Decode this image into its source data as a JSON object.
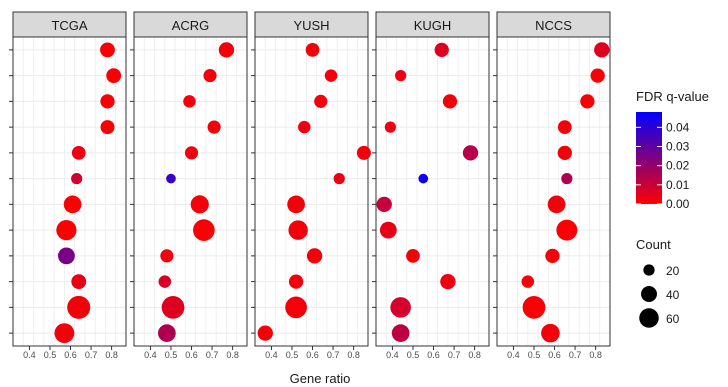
{
  "chart_data": {
    "type": "scatter",
    "xlabel": "Gene ratio",
    "ylabel": "",
    "xlim": [
      0.32,
      0.87
    ],
    "x_ticks": [
      "0.4",
      "0.5",
      "0.6",
      "0.7",
      "0.8"
    ],
    "x_tick_values": [
      0.4,
      0.5,
      0.6,
      0.7,
      0.8
    ],
    "n_rows": 12,
    "grid": true,
    "panel_background": "#ffffff",
    "grid_color": "#ebebeb",
    "strip_fill": "#d9d9d9",
    "color_scale": {
      "title": "FDR q-value",
      "low_color": "#ff0000",
      "high_color": "#0000ff",
      "min": 0,
      "max": 0.048,
      "tick_labels": [
        "0.04",
        "0.03",
        "0.02",
        "0.01",
        "0.00"
      ],
      "tick_values": [
        0.04,
        0.03,
        0.02,
        0.01,
        0.0
      ]
    },
    "size_legend": {
      "title": "Count",
      "labels": [
        "20",
        "40",
        "60"
      ],
      "values": [
        20,
        40,
        60
      ]
    },
    "legend_position": "right",
    "panels": [
      {
        "name": "TCGA",
        "points": [
          {
            "row": 1,
            "x": 0.78,
            "count": 28,
            "q": 0.001
          },
          {
            "row": 2,
            "x": 0.81,
            "count": 28,
            "q": 0.001
          },
          {
            "row": 3,
            "x": 0.78,
            "count": 26,
            "q": 0.001
          },
          {
            "row": 4,
            "x": 0.78,
            "count": 25,
            "q": 0.001
          },
          {
            "row": 5,
            "x": 0.64,
            "count": 24,
            "q": 0.003
          },
          {
            "row": 6,
            "x": 0.63,
            "count": 16,
            "q": 0.009
          },
          {
            "row": 7,
            "x": 0.61,
            "count": 40,
            "q": 0.001
          },
          {
            "row": 8,
            "x": 0.58,
            "count": 52,
            "q": 0.001
          },
          {
            "row": 9,
            "x": 0.58,
            "count": 36,
            "q": 0.025
          },
          {
            "row": 10,
            "x": 0.64,
            "count": 28,
            "q": 0.004
          },
          {
            "row": 11,
            "x": 0.64,
            "count": 68,
            "q": 0.002
          },
          {
            "row": 12,
            "x": 0.57,
            "count": 50,
            "q": 0.002
          }
        ]
      },
      {
        "name": "ACRG",
        "points": [
          {
            "row": 1,
            "x": 0.77,
            "count": 30,
            "q": 0.002
          },
          {
            "row": 2,
            "x": 0.69,
            "count": 22,
            "q": 0.002
          },
          {
            "row": 3,
            "x": 0.59,
            "count": 20,
            "q": 0.002
          },
          {
            "row": 4,
            "x": 0.71,
            "count": 22,
            "q": 0.002
          },
          {
            "row": 5,
            "x": 0.6,
            "count": 22,
            "q": 0.003
          },
          {
            "row": 6,
            "x": 0.5,
            "count": 12,
            "q": 0.037
          },
          {
            "row": 7,
            "x": 0.64,
            "count": 42,
            "q": 0.002
          },
          {
            "row": 8,
            "x": 0.66,
            "count": 60,
            "q": 0.001
          },
          {
            "row": 9,
            "x": 0.48,
            "count": 22,
            "q": 0.002
          },
          {
            "row": 10,
            "x": 0.47,
            "count": 20,
            "q": 0.007
          },
          {
            "row": 11,
            "x": 0.51,
            "count": 66,
            "q": 0.006
          },
          {
            "row": 12,
            "x": 0.48,
            "count": 40,
            "q": 0.015
          }
        ]
      },
      {
        "name": "YUSH",
        "points": [
          {
            "row": 1,
            "x": 0.6,
            "count": 24,
            "q": 0.002
          },
          {
            "row": 2,
            "x": 0.69,
            "count": 20,
            "q": 0.002
          },
          {
            "row": 3,
            "x": 0.64,
            "count": 22,
            "q": 0.002
          },
          {
            "row": 4,
            "x": 0.56,
            "count": 20,
            "q": 0.003
          },
          {
            "row": 5,
            "x": 0.85,
            "count": 25,
            "q": 0.002
          },
          {
            "row": 6,
            "x": 0.73,
            "count": 16,
            "q": 0.004
          },
          {
            "row": 7,
            "x": 0.52,
            "count": 40,
            "q": 0.002
          },
          {
            "row": 8,
            "x": 0.53,
            "count": 48,
            "q": 0.002
          },
          {
            "row": 9,
            "x": 0.61,
            "count": 30,
            "q": 0.002
          },
          {
            "row": 10,
            "x": 0.52,
            "count": 26,
            "q": 0.002
          },
          {
            "row": 11,
            "x": 0.52,
            "count": 60,
            "q": 0.002
          },
          {
            "row": 12,
            "x": 0.37,
            "count": 30,
            "q": 0.002
          }
        ]
      },
      {
        "name": "KUGH",
        "points": [
          {
            "row": 1,
            "x": 0.64,
            "count": 26,
            "q": 0.006
          },
          {
            "row": 2,
            "x": 0.44,
            "count": 16,
            "q": 0.003
          },
          {
            "row": 3,
            "x": 0.68,
            "count": 26,
            "q": 0.002
          },
          {
            "row": 4,
            "x": 0.39,
            "count": 16,
            "q": 0.003
          },
          {
            "row": 5,
            "x": 0.78,
            "count": 30,
            "q": 0.014
          },
          {
            "row": 6,
            "x": 0.55,
            "count": 12,
            "q": 0.045
          },
          {
            "row": 7,
            "x": 0.36,
            "count": 30,
            "q": 0.011
          },
          {
            "row": 8,
            "x": 0.38,
            "count": 36,
            "q": 0.004
          },
          {
            "row": 9,
            "x": 0.5,
            "count": 24,
            "q": 0.002
          },
          {
            "row": 10,
            "x": 0.67,
            "count": 30,
            "q": 0.003
          },
          {
            "row": 11,
            "x": 0.44,
            "count": 54,
            "q": 0.008
          },
          {
            "row": 12,
            "x": 0.44,
            "count": 40,
            "q": 0.012
          }
        ]
      },
      {
        "name": "NCCS",
        "points": [
          {
            "row": 1,
            "x": 0.83,
            "count": 30,
            "q": 0.006
          },
          {
            "row": 2,
            "x": 0.81,
            "count": 26,
            "q": 0.001
          },
          {
            "row": 3,
            "x": 0.76,
            "count": 26,
            "q": 0.001
          },
          {
            "row": 4,
            "x": 0.65,
            "count": 24,
            "q": 0.002
          },
          {
            "row": 5,
            "x": 0.65,
            "count": 26,
            "q": 0.002
          },
          {
            "row": 6,
            "x": 0.66,
            "count": 16,
            "q": 0.015
          },
          {
            "row": 7,
            "x": 0.61,
            "count": 40,
            "q": 0.002
          },
          {
            "row": 8,
            "x": 0.66,
            "count": 56,
            "q": 0.001
          },
          {
            "row": 9,
            "x": 0.59,
            "count": 26,
            "q": 0.002
          },
          {
            "row": 10,
            "x": 0.47,
            "count": 20,
            "q": 0.002
          },
          {
            "row": 11,
            "x": 0.5,
            "count": 66,
            "q": 0.001
          },
          {
            "row": 12,
            "x": 0.58,
            "count": 44,
            "q": 0.002
          }
        ]
      }
    ]
  }
}
